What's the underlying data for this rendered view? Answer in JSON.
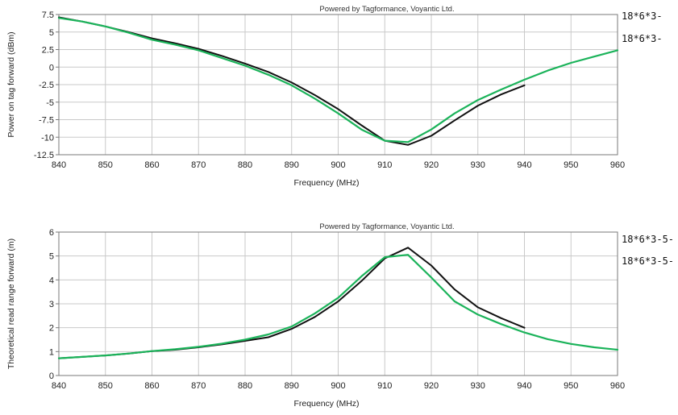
{
  "colors": {
    "series_black": "#111111",
    "series_green": "#1bb35a",
    "grid": "#c9c9c9",
    "frame": "#7a7a7a"
  },
  "chart_data": [
    {
      "type": "line",
      "title": "",
      "credit": "Powered by Tagformance, Voyantic Ltd.",
      "xlabel": "Frequency (MHz)",
      "ylabel": "Power on tag forward (dBm)",
      "xlim": [
        840,
        960
      ],
      "ylim": [
        -12.5,
        7.5
      ],
      "xticks": [
        840,
        850,
        860,
        870,
        880,
        890,
        900,
        910,
        920,
        930,
        940,
        950,
        960
      ],
      "yticks": [
        "7.5",
        "5",
        "2.5",
        "0",
        "-2.5",
        "-5",
        "-7.5",
        "-10",
        "-12.5"
      ],
      "grid": true,
      "legend_position": "right",
      "series": [
        {
          "name": "18*6*3-",
          "color": "#111111",
          "x": [
            840,
            845,
            850,
            855,
            860,
            865,
            870,
            875,
            880,
            885,
            890,
            895,
            900,
            905,
            910,
            915,
            920,
            925,
            930,
            935,
            940
          ],
          "y": [
            7.1,
            6.5,
            5.8,
            5.0,
            4.1,
            3.4,
            2.6,
            1.6,
            0.5,
            -0.7,
            -2.2,
            -4.0,
            -6.0,
            -8.3,
            -10.5,
            -11.1,
            -9.8,
            -7.6,
            -5.5,
            -3.9,
            -2.6
          ]
        },
        {
          "name": "18*6*3-",
          "color": "#1bb35a",
          "x": [
            840,
            845,
            850,
            855,
            860,
            865,
            870,
            875,
            880,
            885,
            890,
            895,
            900,
            905,
            910,
            915,
            920,
            925,
            930,
            935,
            940,
            945,
            950,
            955,
            960
          ],
          "y": [
            7.0,
            6.5,
            5.8,
            4.9,
            3.9,
            3.2,
            2.4,
            1.3,
            0.2,
            -1.1,
            -2.6,
            -4.5,
            -6.6,
            -8.9,
            -10.5,
            -10.7,
            -8.9,
            -6.6,
            -4.7,
            -3.2,
            -1.8,
            -0.5,
            0.6,
            1.5,
            2.4
          ]
        }
      ]
    },
    {
      "type": "line",
      "title": "",
      "credit": "Powered by Tagformance, Voyantic Ltd.",
      "xlabel": "Frequency (MHz)",
      "ylabel": "Theoretical read range forward (m)",
      "xlim": [
        840,
        960
      ],
      "ylim": [
        0,
        6
      ],
      "xticks": [
        840,
        850,
        860,
        870,
        880,
        890,
        900,
        910,
        920,
        930,
        940,
        950,
        960
      ],
      "yticks": [
        "6",
        "5",
        "4",
        "3",
        "2",
        "1",
        "0"
      ],
      "grid": true,
      "legend_position": "right",
      "series": [
        {
          "name": "18*6*3-5-",
          "color": "#111111",
          "x": [
            840,
            845,
            850,
            855,
            860,
            865,
            870,
            875,
            880,
            885,
            890,
            895,
            900,
            905,
            910,
            915,
            920,
            925,
            930,
            935,
            940
          ],
          "y": [
            0.72,
            0.78,
            0.84,
            0.92,
            1.02,
            1.08,
            1.18,
            1.3,
            1.45,
            1.6,
            1.95,
            2.45,
            3.1,
            3.95,
            4.9,
            5.35,
            4.6,
            3.6,
            2.85,
            2.4,
            2.0
          ]
        },
        {
          "name": "18*6*3-5-",
          "color": "#1bb35a",
          "x": [
            840,
            845,
            850,
            855,
            860,
            865,
            870,
            875,
            880,
            885,
            890,
            895,
            900,
            905,
            910,
            915,
            920,
            925,
            930,
            935,
            940,
            945,
            950,
            955,
            960
          ],
          "y": [
            0.72,
            0.78,
            0.84,
            0.92,
            1.02,
            1.1,
            1.2,
            1.33,
            1.5,
            1.72,
            2.05,
            2.6,
            3.25,
            4.15,
            4.95,
            5.05,
            4.1,
            3.1,
            2.55,
            2.15,
            1.8,
            1.52,
            1.32,
            1.18,
            1.08
          ]
        }
      ]
    }
  ]
}
